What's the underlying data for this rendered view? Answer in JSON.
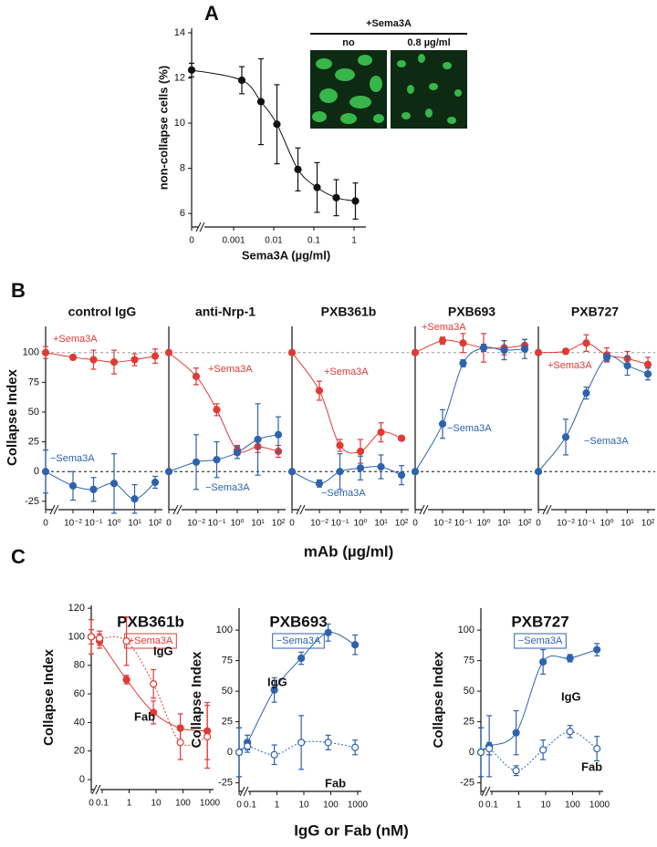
{
  "figure": {
    "panel_labels": [
      "A",
      "B",
      "C"
    ],
    "B_ylabel": "Collapse Index",
    "B_xlabel": "mAb (µg/ml)",
    "C_xlabel": "IgG or Fab (nM)"
  },
  "chart_data": [
    {
      "type": "line",
      "xlabel": "Sema3A (µg/ml)",
      "ylabel": "non-collapse cells (%)",
      "xscale": "log",
      "x": [
        0,
        0.0016,
        0.0048,
        0.012,
        0.04,
        0.12,
        0.36,
        1.08
      ],
      "xlim": [
        0,
        1.6
      ],
      "ylim": [
        5.4,
        14.2
      ],
      "xticks": [
        0,
        0.001,
        0.01,
        0.1,
        1
      ],
      "yticks": [
        6,
        8,
        10,
        12,
        14
      ],
      "series": [
        {
          "color": "#111111",
          "values": [
            12.35,
            11.9,
            10.95,
            9.95,
            7.95,
            7.15,
            6.7,
            6.55
          ],
          "errors": [
            0.3,
            0.6,
            1.9,
            1.75,
            0.95,
            1.1,
            0.8,
            0.8
          ]
        }
      ],
      "inset": {
        "title": "+Sema3A",
        "labels": [
          "no",
          "0.8 µg/ml"
        ]
      }
    },
    {
      "type": "line",
      "title": "control IgG",
      "xscale": "log",
      "x": [
        0,
        0.01,
        0.1,
        1,
        10,
        100
      ],
      "xlim": [
        0,
        150
      ],
      "ylim": [
        -32,
        122
      ],
      "xticks": [
        0,
        {
          "value": 0.01,
          "label": "10⁻²"
        },
        {
          "value": 0.1,
          "label": "10⁻¹"
        },
        {
          "value": 1,
          "label": "10⁰"
        },
        {
          "value": 10,
          "label": "10¹"
        },
        {
          "value": 100,
          "label": "10²"
        }
      ],
      "yticks": [
        -25,
        0,
        25,
        50,
        75,
        100
      ],
      "hlines": [
        0,
        100
      ],
      "series": [
        {
          "name": "+Sema3A",
          "color": "#e03a35",
          "values": [
            100,
            96,
            94,
            92,
            94,
            97
          ],
          "errors": [
            5,
            2,
            8,
            10,
            5,
            6
          ]
        },
        {
          "name": "−Sema3A",
          "color": "#2e62ad",
          "values": [
            0,
            -12,
            -15,
            -10,
            -23,
            -9
          ],
          "errors": [
            18,
            12,
            10,
            25,
            12,
            5
          ]
        }
      ]
    },
    {
      "type": "line",
      "title": "anti-Nrp-1",
      "xscale": "log",
      "x": [
        0,
        0.01,
        0.1,
        1,
        10,
        100
      ],
      "xlim": [
        0,
        150
      ],
      "ylim": [
        -32,
        122
      ],
      "xticks": [
        0,
        {
          "value": 0.01,
          "label": "10⁻²"
        },
        {
          "value": 0.1,
          "label": "10⁻¹"
        },
        {
          "value": 1,
          "label": "10⁰"
        },
        {
          "value": 10,
          "label": "10¹"
        },
        {
          "value": 100,
          "label": "10²"
        }
      ],
      "hlines": [
        0,
        100
      ],
      "series": [
        {
          "name": "+Sema3A",
          "color": "#e03a35",
          "values": [
            100,
            80,
            52,
            18,
            21,
            17
          ],
          "errors": [
            0,
            7,
            5,
            4,
            5,
            5
          ]
        },
        {
          "name": "−Sema3A",
          "color": "#2e62ad",
          "values": [
            0,
            8,
            10,
            16,
            27,
            31
          ],
          "errors": [
            0,
            23,
            15,
            5,
            30,
            15
          ]
        }
      ]
    },
    {
      "type": "line",
      "title": "PXB361b",
      "xscale": "log",
      "x": [
        0,
        0.01,
        0.1,
        1,
        10,
        100
      ],
      "xlim": [
        0,
        150
      ],
      "ylim": [
        -32,
        122
      ],
      "xticks": [
        0,
        {
          "value": 0.01,
          "label": "10⁻²"
        },
        {
          "value": 0.1,
          "label": "10⁻¹"
        },
        {
          "value": 1,
          "label": "10⁰"
        },
        {
          "value": 10,
          "label": "10¹"
        },
        {
          "value": 100,
          "label": "10²"
        }
      ],
      "hlines": [
        0,
        100
      ],
      "series": [
        {
          "name": "+Sema3A",
          "color": "#e03a35",
          "values": [
            100,
            68,
            22,
            17,
            33,
            28
          ],
          "errors": [
            0,
            8,
            5,
            10,
            8,
            2
          ]
        },
        {
          "name": "−Sema3A",
          "color": "#2e62ad",
          "values": [
            0,
            -10,
            0,
            3,
            4,
            -3
          ],
          "errors": [
            0,
            3,
            15,
            10,
            10,
            8
          ]
        }
      ]
    },
    {
      "type": "line",
      "title": "PXB693",
      "xscale": "log",
      "x": [
        0,
        0.01,
        0.1,
        1,
        10,
        100
      ],
      "xlim": [
        0,
        150
      ],
      "ylim": [
        -32,
        122
      ],
      "xticks": [
        0,
        {
          "value": 0.01,
          "label": "10⁻²"
        },
        {
          "value": 0.1,
          "label": "10⁻¹"
        },
        {
          "value": 1,
          "label": "10⁰"
        },
        {
          "value": 10,
          "label": "10¹"
        },
        {
          "value": 100,
          "label": "10²"
        }
      ],
      "hlines": [
        0,
        100
      ],
      "series": [
        {
          "name": "+Sema3A",
          "color": "#e03a35",
          "values": [
            100,
            110,
            108,
            104,
            104,
            106
          ],
          "errors": [
            0,
            3,
            8,
            12,
            6,
            5
          ]
        },
        {
          "name": "−Sema3A",
          "color": "#2e62ad",
          "values": [
            0,
            40,
            91,
            104,
            102,
            103
          ],
          "errors": [
            0,
            12,
            3,
            3,
            8,
            8
          ]
        }
      ]
    },
    {
      "type": "line",
      "title": "PXB727",
      "xscale": "log",
      "x": [
        0,
        0.01,
        0.1,
        1,
        10,
        100
      ],
      "xlim": [
        0,
        150
      ],
      "ylim": [
        -32,
        122
      ],
      "xticks": [
        0,
        {
          "value": 0.01,
          "label": "10⁻²"
        },
        {
          "value": 0.1,
          "label": "10⁻¹"
        },
        {
          "value": 1,
          "label": "10⁰"
        },
        {
          "value": 10,
          "label": "10¹"
        },
        {
          "value": 100,
          "label": "10²"
        }
      ],
      "hlines": [
        0,
        100
      ],
      "series": [
        {
          "name": "+Sema3A",
          "color": "#e03a35",
          "values": [
            100,
            101,
            108,
            98,
            95,
            90
          ],
          "errors": [
            0,
            2,
            7,
            6,
            6,
            6
          ]
        },
        {
          "name": "−Sema3A",
          "color": "#2e62ad",
          "values": [
            0,
            29,
            66,
            96,
            89,
            82
          ],
          "errors": [
            0,
            15,
            5,
            3,
            8,
            5
          ]
        }
      ]
    },
    {
      "type": "line",
      "title": "PXB361b",
      "condition": "+Sema3A",
      "condition_color": "#e03a35",
      "ylabel": "Collapse Index",
      "xscale": "log",
      "x": [
        0,
        0.08,
        0.8,
        8,
        80,
        800
      ],
      "xlim": [
        0,
        1000
      ],
      "ylim": [
        -7,
        122
      ],
      "xticks": [
        0,
        0.1,
        1,
        10,
        100,
        1000
      ],
      "yticks": [
        0,
        20,
        40,
        60,
        80,
        100,
        120
      ],
      "series": [
        {
          "name": "IgG",
          "color": "#e03a35",
          "style": "solid",
          "marker": "filled",
          "values": [
            100,
            97,
            70,
            47,
            36,
            34
          ],
          "errors": [
            12,
            5,
            3,
            8,
            10,
            20
          ]
        },
        {
          "name": "Fab",
          "color": "#e03a35",
          "style": "dashed",
          "marker": "open",
          "values": [
            100,
            99,
            97,
            67,
            26,
            30
          ],
          "errors": [
            5,
            5,
            17,
            10,
            12,
            22
          ]
        }
      ]
    },
    {
      "type": "line",
      "title": "PXB693",
      "condition": "−Sema3A",
      "condition_color": "#2e62ad",
      "ylabel": "Collapse Index",
      "xscale": "log",
      "x": [
        0,
        0.08,
        0.8,
        8,
        80,
        800
      ],
      "xlim": [
        0,
        1000
      ],
      "ylim": [
        -32,
        118
      ],
      "xticks": [
        0,
        0.1,
        1,
        10,
        100,
        1000
      ],
      "yticks": [
        -25,
        0,
        25,
        50,
        75,
        100
      ],
      "series": [
        {
          "name": "IgG",
          "color": "#2e62ad",
          "style": "solid",
          "marker": "filled",
          "values": [
            0,
            8,
            51,
            77,
            98,
            88
          ],
          "errors": [
            20,
            6,
            10,
            5,
            7,
            8
          ]
        },
        {
          "name": "Fab",
          "color": "#2e62ad",
          "style": "dashed",
          "marker": "open",
          "values": [
            0,
            5,
            -2,
            8,
            8,
            4
          ],
          "errors": [
            20,
            5,
            8,
            22,
            6,
            6
          ]
        }
      ]
    },
    {
      "type": "line",
      "title": "PXB727",
      "condition": "−Sema3A",
      "condition_color": "#2e62ad",
      "ylabel": "Collapse Index",
      "xscale": "log",
      "x": [
        0,
        0.08,
        0.8,
        8,
        80,
        800
      ],
      "xlim": [
        0,
        1000
      ],
      "ylim": [
        -32,
        118
      ],
      "xticks": [
        0,
        0.1,
        1,
        10,
        100,
        1000
      ],
      "yticks": [
        -25,
        0,
        25,
        50,
        75,
        100
      ],
      "series": [
        {
          "name": "IgG",
          "color": "#2e62ad",
          "style": "solid",
          "marker": "filled",
          "values": [
            0,
            5,
            16,
            74,
            77,
            84
          ],
          "errors": [
            20,
            25,
            18,
            10,
            3,
            5
          ]
        },
        {
          "name": "Fab",
          "color": "#2e62ad",
          "style": "dashed",
          "marker": "open",
          "values": [
            0,
            3,
            -15,
            2,
            17,
            3
          ],
          "errors": [
            20,
            5,
            4,
            8,
            5,
            10
          ]
        }
      ]
    }
  ]
}
